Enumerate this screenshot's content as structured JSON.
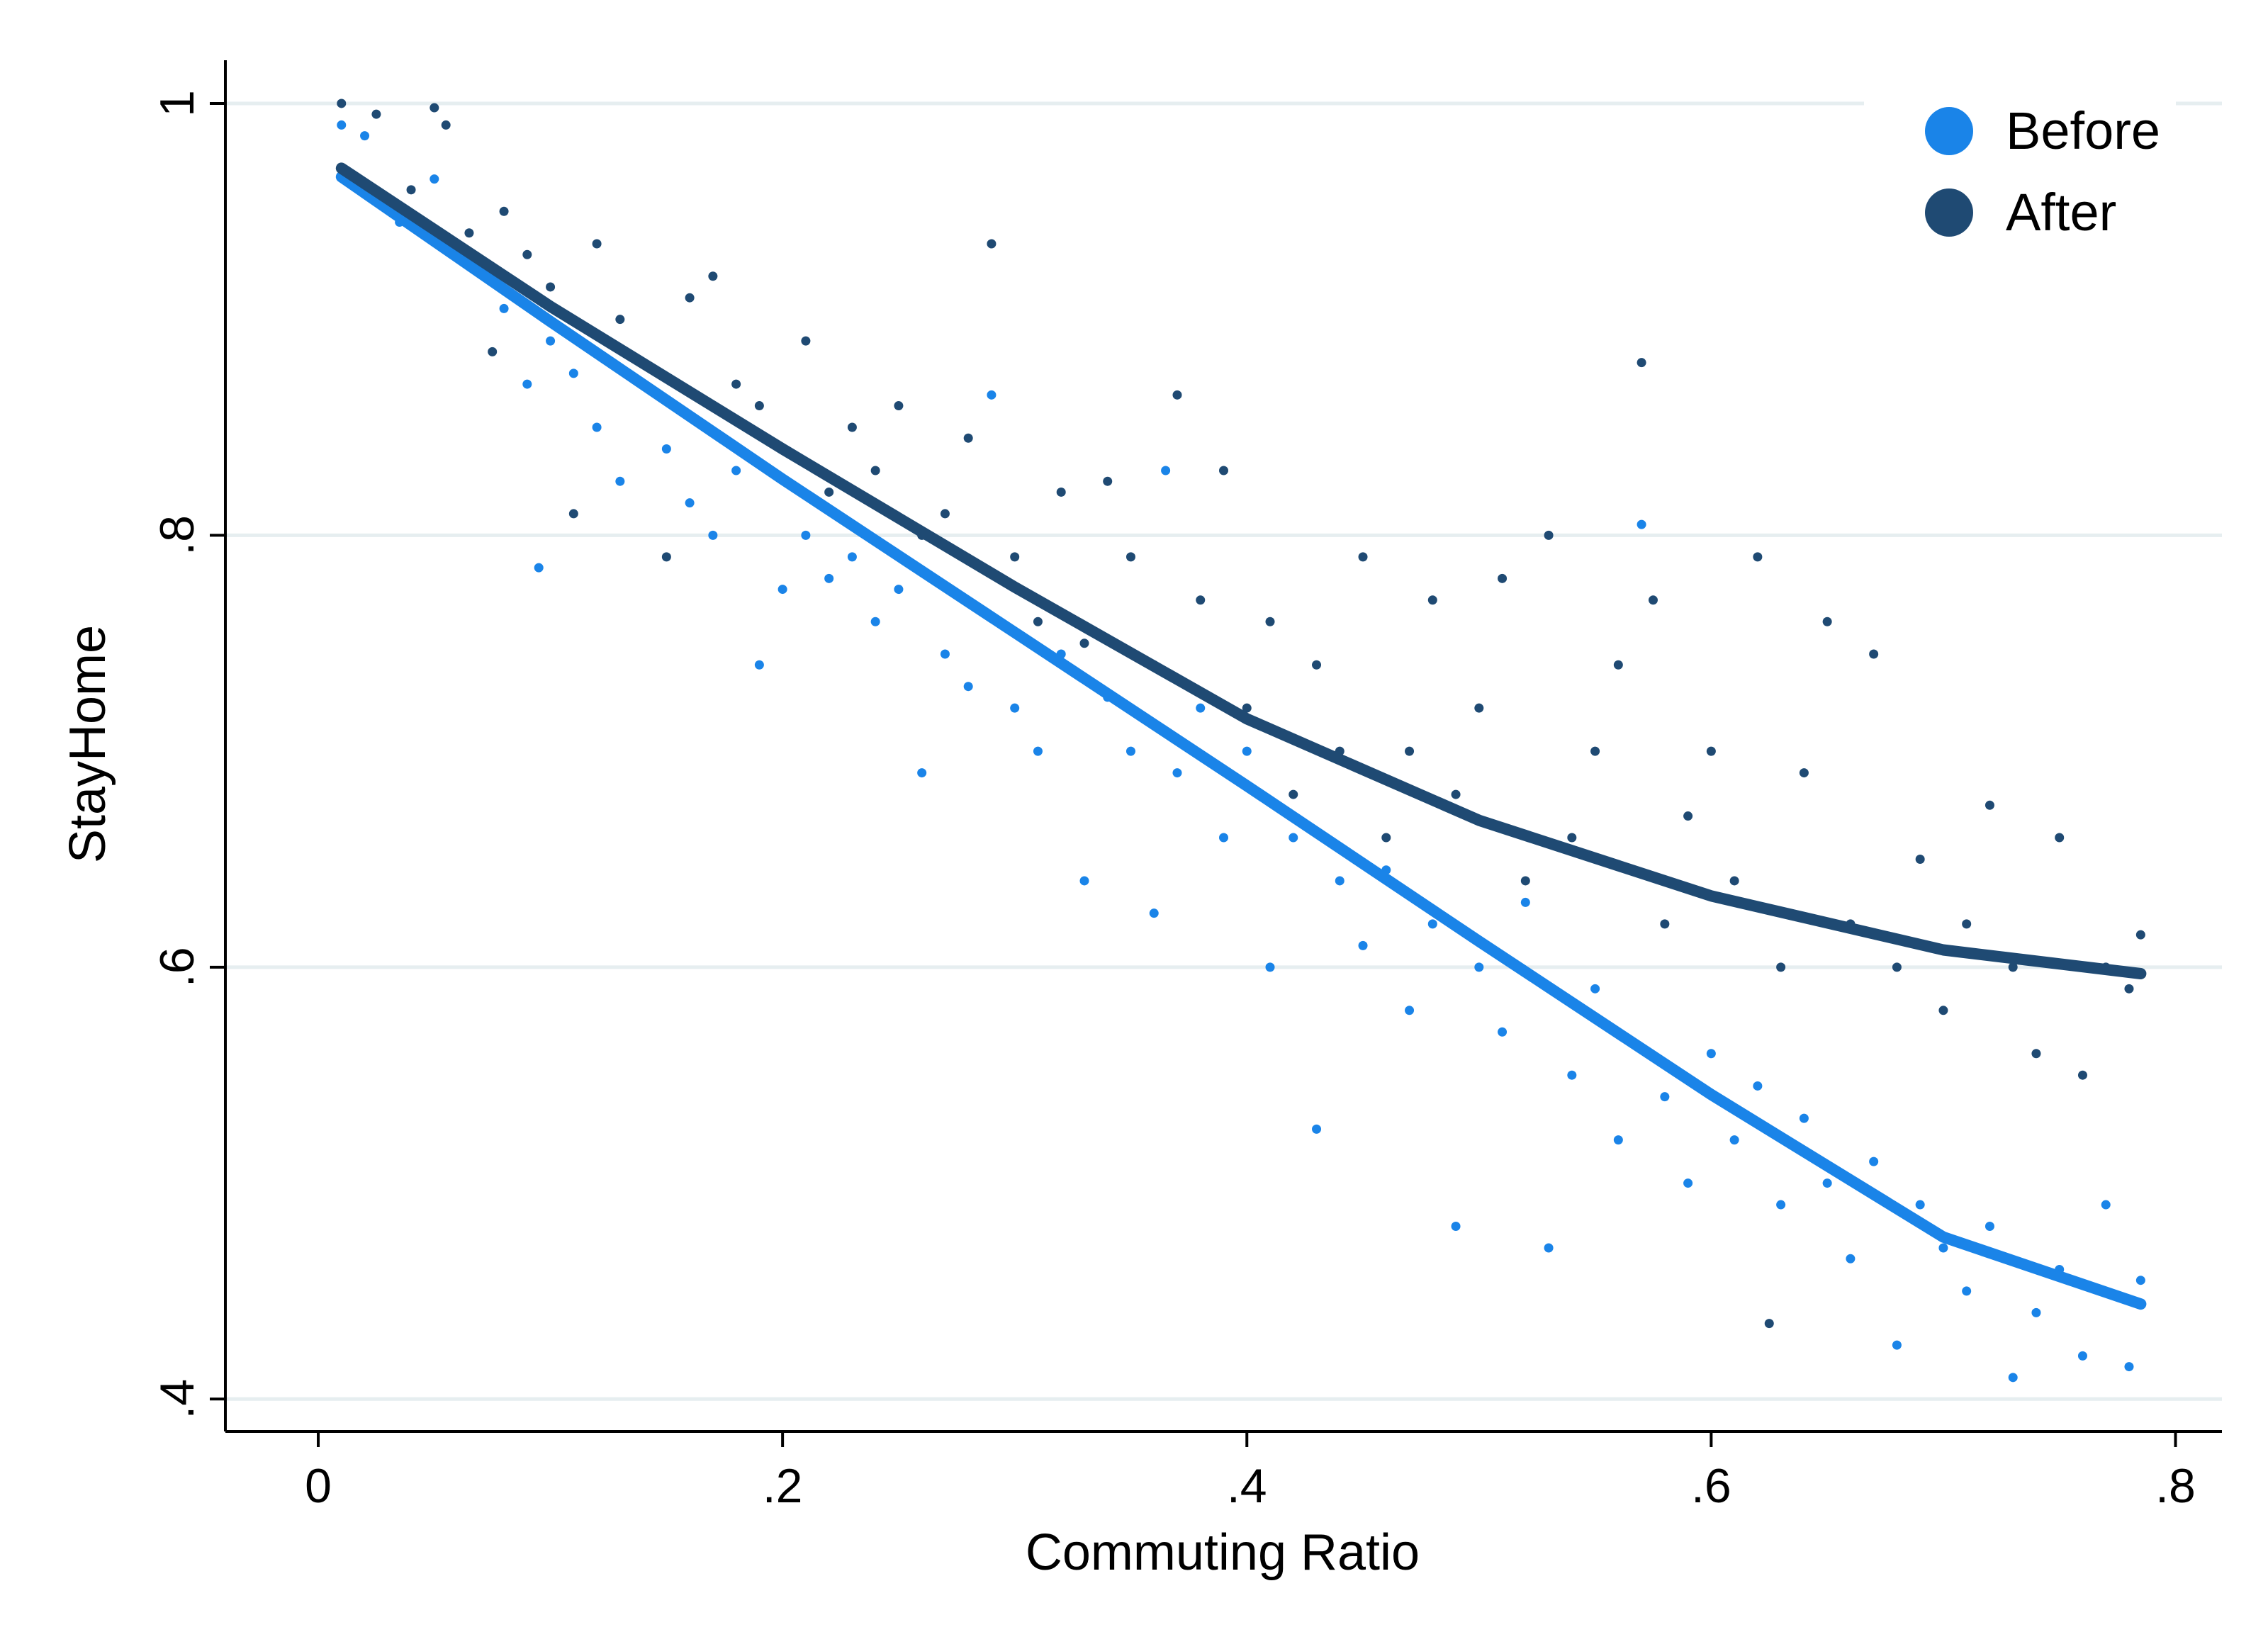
{
  "chart_data": {
    "type": "scatter",
    "title": "",
    "xlabel": "Commuting Ratio",
    "ylabel": "StayHome",
    "xlim": [
      -0.04,
      0.82
    ],
    "ylim": [
      0.385,
      1.02
    ],
    "xticks": [
      {
        "value": 0,
        "label": "0"
      },
      {
        "value": 0.2,
        "label": ".2"
      },
      {
        "value": 0.4,
        "label": ".4"
      },
      {
        "value": 0.6,
        "label": ".6"
      },
      {
        "value": 0.8,
        "label": ".8"
      }
    ],
    "yticks": [
      {
        "value": 0.4,
        "label": ".4"
      },
      {
        "value": 0.6,
        "label": ".6"
      },
      {
        "value": 0.8,
        "label": ".8"
      },
      {
        "value": 1.0,
        "label": "1"
      }
    ],
    "grid": "horizontal",
    "legend_position": "top-right",
    "series": [
      {
        "name": "Before",
        "color": "#1a84e8",
        "fit_line": [
          {
            "x": 0.01,
            "y": 0.966
          },
          {
            "x": 0.1,
            "y": 0.899
          },
          {
            "x": 0.2,
            "y": 0.826
          },
          {
            "x": 0.3,
            "y": 0.755
          },
          {
            "x": 0.4,
            "y": 0.684
          },
          {
            "x": 0.5,
            "y": 0.612
          },
          {
            "x": 0.6,
            "y": 0.541
          },
          {
            "x": 0.7,
            "y": 0.475
          },
          {
            "x": 0.785,
            "y": 0.444
          }
        ],
        "points": [
          {
            "x": 0.01,
            "y": 0.99
          },
          {
            "x": 0.02,
            "y": 0.985
          },
          {
            "x": 0.035,
            "y": 0.945
          },
          {
            "x": 0.05,
            "y": 0.965
          },
          {
            "x": 0.07,
            "y": 0.925
          },
          {
            "x": 0.08,
            "y": 0.905
          },
          {
            "x": 0.09,
            "y": 0.87
          },
          {
            "x": 0.095,
            "y": 0.785
          },
          {
            "x": 0.1,
            "y": 0.89
          },
          {
            "x": 0.11,
            "y": 0.875
          },
          {
            "x": 0.12,
            "y": 0.85
          },
          {
            "x": 0.13,
            "y": 0.825
          },
          {
            "x": 0.14,
            "y": 0.87
          },
          {
            "x": 0.15,
            "y": 0.84
          },
          {
            "x": 0.16,
            "y": 0.815
          },
          {
            "x": 0.17,
            "y": 0.8
          },
          {
            "x": 0.18,
            "y": 0.83
          },
          {
            "x": 0.19,
            "y": 0.74
          },
          {
            "x": 0.2,
            "y": 0.775
          },
          {
            "x": 0.21,
            "y": 0.8
          },
          {
            "x": 0.22,
            "y": 0.78
          },
          {
            "x": 0.23,
            "y": 0.79
          },
          {
            "x": 0.24,
            "y": 0.76
          },
          {
            "x": 0.25,
            "y": 0.775
          },
          {
            "x": 0.26,
            "y": 0.69
          },
          {
            "x": 0.27,
            "y": 0.745
          },
          {
            "x": 0.28,
            "y": 0.73
          },
          {
            "x": 0.29,
            "y": 0.865
          },
          {
            "x": 0.3,
            "y": 0.72
          },
          {
            "x": 0.31,
            "y": 0.7
          },
          {
            "x": 0.32,
            "y": 0.745
          },
          {
            "x": 0.33,
            "y": 0.64
          },
          {
            "x": 0.34,
            "y": 0.725
          },
          {
            "x": 0.35,
            "y": 0.7
          },
          {
            "x": 0.36,
            "y": 0.625
          },
          {
            "x": 0.365,
            "y": 0.83
          },
          {
            "x": 0.37,
            "y": 0.69
          },
          {
            "x": 0.38,
            "y": 0.72
          },
          {
            "x": 0.39,
            "y": 0.66
          },
          {
            "x": 0.4,
            "y": 0.7
          },
          {
            "x": 0.41,
            "y": 0.6
          },
          {
            "x": 0.42,
            "y": 0.66
          },
          {
            "x": 0.43,
            "y": 0.525
          },
          {
            "x": 0.44,
            "y": 0.64
          },
          {
            "x": 0.45,
            "y": 0.61
          },
          {
            "x": 0.46,
            "y": 0.645
          },
          {
            "x": 0.47,
            "y": 0.58
          },
          {
            "x": 0.48,
            "y": 0.62
          },
          {
            "x": 0.49,
            "y": 0.48
          },
          {
            "x": 0.5,
            "y": 0.6
          },
          {
            "x": 0.51,
            "y": 0.57
          },
          {
            "x": 0.52,
            "y": 0.63
          },
          {
            "x": 0.53,
            "y": 0.47
          },
          {
            "x": 0.54,
            "y": 0.55
          },
          {
            "x": 0.55,
            "y": 0.59
          },
          {
            "x": 0.56,
            "y": 0.52
          },
          {
            "x": 0.57,
            "y": 0.805
          },
          {
            "x": 0.58,
            "y": 0.54
          },
          {
            "x": 0.59,
            "y": 0.5
          },
          {
            "x": 0.6,
            "y": 0.56
          },
          {
            "x": 0.61,
            "y": 0.52
          },
          {
            "x": 0.62,
            "y": 0.545
          },
          {
            "x": 0.63,
            "y": 0.49
          },
          {
            "x": 0.64,
            "y": 0.53
          },
          {
            "x": 0.65,
            "y": 0.5
          },
          {
            "x": 0.66,
            "y": 0.465
          },
          {
            "x": 0.67,
            "y": 0.51
          },
          {
            "x": 0.68,
            "y": 0.425
          },
          {
            "x": 0.69,
            "y": 0.49
          },
          {
            "x": 0.7,
            "y": 0.47
          },
          {
            "x": 0.71,
            "y": 0.45
          },
          {
            "x": 0.72,
            "y": 0.48
          },
          {
            "x": 0.73,
            "y": 0.41
          },
          {
            "x": 0.74,
            "y": 0.44
          },
          {
            "x": 0.75,
            "y": 0.46
          },
          {
            "x": 0.76,
            "y": 0.42
          },
          {
            "x": 0.77,
            "y": 0.49
          },
          {
            "x": 0.78,
            "y": 0.415
          },
          {
            "x": 0.785,
            "y": 0.455
          }
        ]
      },
      {
        "name": "After",
        "color": "#1f4a73",
        "fit_line": [
          {
            "x": 0.01,
            "y": 0.97
          },
          {
            "x": 0.1,
            "y": 0.906
          },
          {
            "x": 0.2,
            "y": 0.84
          },
          {
            "x": 0.3,
            "y": 0.776
          },
          {
            "x": 0.4,
            "y": 0.715
          },
          {
            "x": 0.5,
            "y": 0.668
          },
          {
            "x": 0.6,
            "y": 0.633
          },
          {
            "x": 0.7,
            "y": 0.608
          },
          {
            "x": 0.785,
            "y": 0.597
          }
        ],
        "points": [
          {
            "x": 0.01,
            "y": 1.0
          },
          {
            "x": 0.025,
            "y": 0.995
          },
          {
            "x": 0.04,
            "y": 0.96
          },
          {
            "x": 0.05,
            "y": 0.998
          },
          {
            "x": 0.055,
            "y": 0.99
          },
          {
            "x": 0.065,
            "y": 0.94
          },
          {
            "x": 0.075,
            "y": 0.885
          },
          {
            "x": 0.08,
            "y": 0.95
          },
          {
            "x": 0.09,
            "y": 0.93
          },
          {
            "x": 0.1,
            "y": 0.915
          },
          {
            "x": 0.11,
            "y": 0.81
          },
          {
            "x": 0.12,
            "y": 0.935
          },
          {
            "x": 0.13,
            "y": 0.9
          },
          {
            "x": 0.14,
            "y": 0.88
          },
          {
            "x": 0.15,
            "y": 0.79
          },
          {
            "x": 0.16,
            "y": 0.91
          },
          {
            "x": 0.17,
            "y": 0.92
          },
          {
            "x": 0.18,
            "y": 0.87
          },
          {
            "x": 0.19,
            "y": 0.86
          },
          {
            "x": 0.2,
            "y": 0.84
          },
          {
            "x": 0.21,
            "y": 0.89
          },
          {
            "x": 0.22,
            "y": 0.82
          },
          {
            "x": 0.23,
            "y": 0.85
          },
          {
            "x": 0.24,
            "y": 0.83
          },
          {
            "x": 0.25,
            "y": 0.86
          },
          {
            "x": 0.26,
            "y": 0.8
          },
          {
            "x": 0.27,
            "y": 0.81
          },
          {
            "x": 0.28,
            "y": 0.845
          },
          {
            "x": 0.29,
            "y": 0.935
          },
          {
            "x": 0.3,
            "y": 0.79
          },
          {
            "x": 0.31,
            "y": 0.76
          },
          {
            "x": 0.32,
            "y": 0.82
          },
          {
            "x": 0.33,
            "y": 0.75
          },
          {
            "x": 0.34,
            "y": 0.825
          },
          {
            "x": 0.35,
            "y": 0.79
          },
          {
            "x": 0.36,
            "y": 0.74
          },
          {
            "x": 0.37,
            "y": 0.865
          },
          {
            "x": 0.38,
            "y": 0.77
          },
          {
            "x": 0.39,
            "y": 0.83
          },
          {
            "x": 0.4,
            "y": 0.72
          },
          {
            "x": 0.41,
            "y": 0.76
          },
          {
            "x": 0.42,
            "y": 0.68
          },
          {
            "x": 0.43,
            "y": 0.74
          },
          {
            "x": 0.44,
            "y": 0.7
          },
          {
            "x": 0.45,
            "y": 0.79
          },
          {
            "x": 0.46,
            "y": 0.66
          },
          {
            "x": 0.47,
            "y": 0.7
          },
          {
            "x": 0.48,
            "y": 0.77
          },
          {
            "x": 0.49,
            "y": 0.68
          },
          {
            "x": 0.5,
            "y": 0.72
          },
          {
            "x": 0.51,
            "y": 0.78
          },
          {
            "x": 0.52,
            "y": 0.64
          },
          {
            "x": 0.53,
            "y": 0.8
          },
          {
            "x": 0.54,
            "y": 0.66
          },
          {
            "x": 0.55,
            "y": 0.7
          },
          {
            "x": 0.56,
            "y": 0.74
          },
          {
            "x": 0.57,
            "y": 0.88
          },
          {
            "x": 0.575,
            "y": 0.77
          },
          {
            "x": 0.58,
            "y": 0.62
          },
          {
            "x": 0.59,
            "y": 0.67
          },
          {
            "x": 0.6,
            "y": 0.7
          },
          {
            "x": 0.61,
            "y": 0.64
          },
          {
            "x": 0.62,
            "y": 0.79
          },
          {
            "x": 0.625,
            "y": 0.435
          },
          {
            "x": 0.63,
            "y": 0.6
          },
          {
            "x": 0.64,
            "y": 0.69
          },
          {
            "x": 0.65,
            "y": 0.76
          },
          {
            "x": 0.66,
            "y": 0.62
          },
          {
            "x": 0.67,
            "y": 0.745
          },
          {
            "x": 0.68,
            "y": 0.6
          },
          {
            "x": 0.69,
            "y": 0.65
          },
          {
            "x": 0.7,
            "y": 0.58
          },
          {
            "x": 0.71,
            "y": 0.62
          },
          {
            "x": 0.72,
            "y": 0.675
          },
          {
            "x": 0.73,
            "y": 0.6
          },
          {
            "x": 0.74,
            "y": 0.56
          },
          {
            "x": 0.75,
            "y": 0.66
          },
          {
            "x": 0.76,
            "y": 0.55
          },
          {
            "x": 0.77,
            "y": 0.6
          },
          {
            "x": 0.78,
            "y": 0.59
          },
          {
            "x": 0.785,
            "y": 0.615
          }
        ]
      }
    ]
  },
  "legend": {
    "items": [
      {
        "label": "Before",
        "color": "#1a84e8"
      },
      {
        "label": "After",
        "color": "#1f4a73"
      }
    ]
  },
  "style": {
    "grid_color": "#e6eef0",
    "axis_color": "#000000"
  }
}
